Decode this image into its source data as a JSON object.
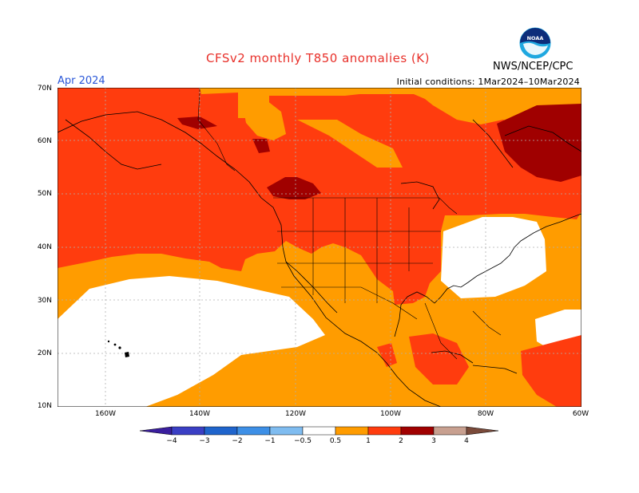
{
  "title": "CFSv2 monthly T850 anomalies (K)",
  "month": "Apr 2024",
  "initial_conditions": "Initial conditions: 1Mar2024–10Mar2024",
  "agency": "NWS/NCEP/CPC",
  "logo": {
    "text": "NOAA",
    "icon": "noaa-logo-icon"
  },
  "lat_labels": [
    "70N",
    "60N",
    "50N",
    "40N",
    "30N",
    "20N",
    "10N"
  ],
  "lon_labels": [
    "160W",
    "140W",
    "120W",
    "100W",
    "80W",
    "60W"
  ],
  "legend": {
    "ticks": [
      "−4",
      "−3",
      "−2",
      "−1",
      "−0.5",
      "0.5",
      "1",
      "2",
      "3",
      "4"
    ],
    "colors": {
      "below_-4": "#3a1e9e",
      "-4_-3": "#3a3fc4",
      "-3_-2": "#1f64cc",
      "-2_-1": "#3d8fe6",
      "-1_-0.5": "#7fbcf0",
      "neutral": "#ffffff",
      "0.5_1": "#ff9c00",
      "1_2": "#ff3c0e",
      "2_3": "#a00000",
      "3_4": "#c8a090",
      "above_4": "#7a4a3a"
    }
  },
  "colors": {
    "title": "#e8302a",
    "month": "#2a57d8",
    "anomaly_0.5_1": "#ff9c00",
    "anomaly_1_2": "#ff3c0e",
    "anomaly_2_3": "#a00000"
  }
}
